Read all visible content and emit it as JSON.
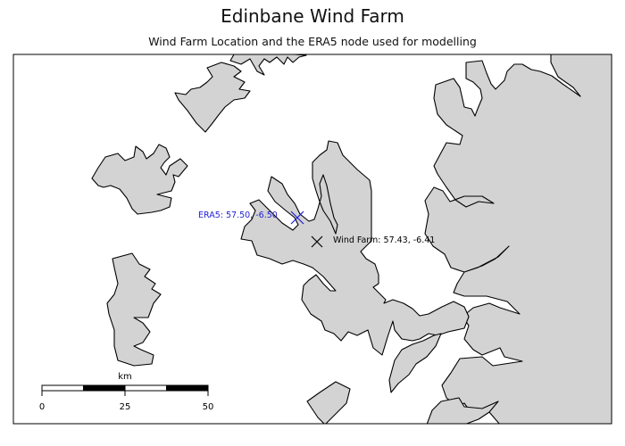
{
  "map": {
    "title": "Edinbane Wind Farm",
    "subtitle": "Wind Farm Location and the ERA5 node used for modelling",
    "land_color": "#d3d3d3",
    "water_color": "#ffffff",
    "markers": [
      {
        "name": "ERA5",
        "label": "ERA5: 57.50, -6.50",
        "lat": 57.5,
        "lon": -6.5,
        "color": "#1f1fd6",
        "symbol": "x"
      },
      {
        "name": "Wind Farm",
        "label": "Wind Farm: 57.43, -6.41",
        "lat": 57.43,
        "lon": -6.41,
        "color": "#000000",
        "symbol": "x"
      }
    ],
    "scale_bar": {
      "unit": "km",
      "ticks": [
        "0",
        "25",
        "50"
      ]
    }
  }
}
